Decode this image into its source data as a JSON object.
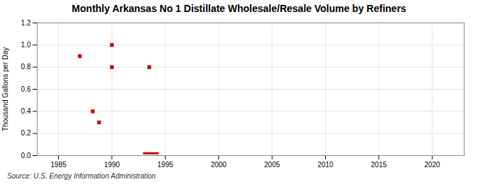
{
  "chart_data": {
    "type": "scatter",
    "title": "Monthly Arkansas No 1 Distillate Wholesale/Resale Volume by Refiners",
    "ylabel": "Thousand Gallons per Day",
    "annotation": "Source: U.S. Energy Information Administration",
    "series": [
      {
        "type": "scatter",
        "marker": "square",
        "color": "#cc0000",
        "x": [
          1987.0,
          1988.2,
          1988.8,
          1990.0,
          1990.0,
          1993.5
        ],
        "values": [
          0.9,
          0.4,
          0.3,
          1.0,
          0.8,
          0.8
        ]
      },
      {
        "type": "line",
        "line_style": "solid",
        "color": "#cc0000",
        "x": [
          1993.0,
          1994.3
        ],
        "values": [
          0.02,
          0.02
        ]
      }
    ],
    "xlim": [
      1983,
      2023
    ],
    "xticks": [
      1985,
      1990,
      1995,
      2000,
      2005,
      2010,
      2015,
      2020
    ],
    "ylim": [
      0.0,
      1.2
    ],
    "yticks": [
      {
        "value": 0.0,
        "label": "0.0"
      },
      0.2,
      0.4,
      0.6,
      0.8,
      {
        "value": 1.0,
        "label": "1.0"
      },
      1.2
    ],
    "grid": true
  }
}
